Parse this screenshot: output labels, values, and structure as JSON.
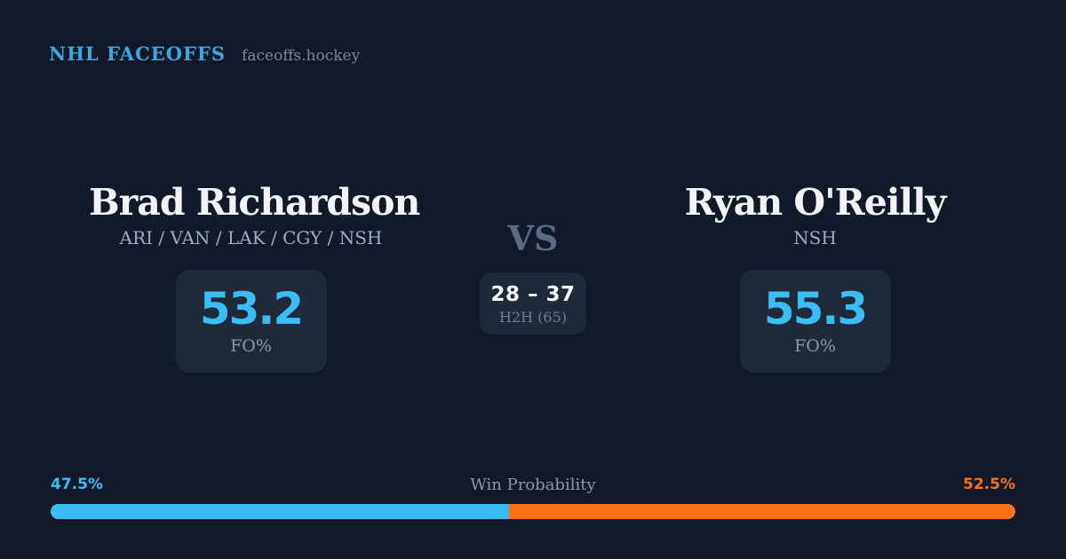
{
  "theme": {
    "background": "#121A2A",
    "card": "#1E2939",
    "accent_blue": "#3CBCF4",
    "accent_blue_dark": "#41A6DF",
    "accent_orange": "#F97316"
  },
  "header": {
    "brand": "NHL FACEOFFS",
    "site": "faceoffs.hockey"
  },
  "matchup": {
    "vs_label": "VS",
    "h2h": {
      "score": "28 – 37",
      "label": "H2H (65)"
    },
    "players": [
      {
        "name": "Brad Richardson",
        "teams": "ARI / VAN / LAK / CGY / NSH",
        "stat_value": "53.2",
        "stat_label": "FO%"
      },
      {
        "name": "Ryan O'Reilly",
        "teams": "NSH",
        "stat_value": "55.3",
        "stat_label": "FO%"
      }
    ]
  },
  "win_probability": {
    "title": "Win Probability",
    "left_label": "47.5%",
    "right_label": "52.5%",
    "left_value": 47.5,
    "right_value": 52.5
  }
}
